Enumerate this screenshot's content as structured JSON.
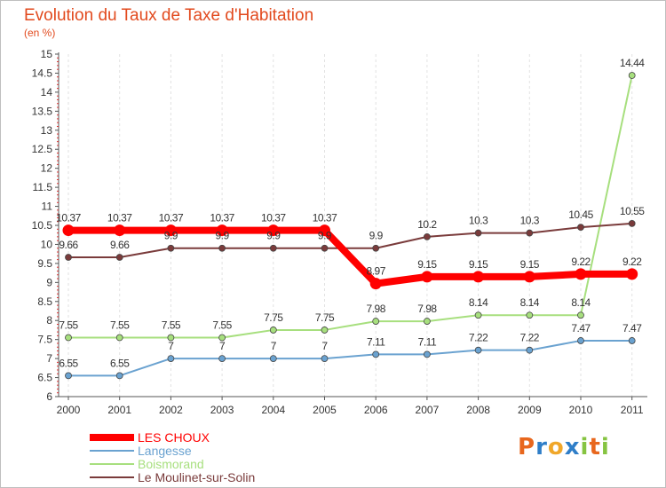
{
  "chart_data": {
    "type": "line",
    "title": "Evolution du Taux de Taxe d'Habitation",
    "subtitle": "(en %)",
    "x": [
      "2000",
      "2001",
      "2002",
      "2003",
      "2004",
      "2005",
      "2006",
      "2007",
      "2008",
      "2009",
      "2010",
      "2011"
    ],
    "ylim": [
      6,
      15
    ],
    "yticks": [
      "6",
      "6.5",
      "7",
      "7.5",
      "8",
      "8.5",
      "9",
      "9.5",
      "10",
      "10.5",
      "11",
      "11.5",
      "12",
      "12.5",
      "13",
      "13.5",
      "14",
      "14.5",
      "15"
    ],
    "grid": "vertical dashed",
    "legend_position": "bottom-left",
    "series": [
      {
        "name": "LES CHOUX",
        "color": "#ff0000",
        "values": [
          10.37,
          10.37,
          10.37,
          10.37,
          10.37,
          10.37,
          8.97,
          9.15,
          9.15,
          9.15,
          9.22,
          9.22
        ],
        "labels": [
          "10.37",
          "10.37",
          "10.37",
          "10.37",
          "10.37",
          "10.37",
          "8.97",
          "9.15",
          "9.15",
          "9.15",
          "9.22",
          "9.22"
        ]
      },
      {
        "name": "Langesse",
        "color": "#6aa2d0",
        "values": [
          6.55,
          6.55,
          7,
          7,
          7,
          7,
          7.11,
          7.11,
          7.22,
          7.22,
          7.47,
          7.47
        ],
        "labels": [
          "6.55",
          "6.55",
          "7",
          "7",
          "7",
          "7",
          "7.11",
          "7.11",
          "7.22",
          "7.22",
          "7.47",
          "7.47"
        ]
      },
      {
        "name": "Boismorand",
        "color": "#a7df7e",
        "values": [
          7.55,
          7.55,
          7.55,
          7.55,
          7.75,
          7.75,
          7.98,
          7.98,
          8.14,
          8.14,
          8.14,
          14.44
        ],
        "labels": [
          "7.55",
          "7.55",
          "7.55",
          "7.55",
          "7.75",
          "7.75",
          "7.98",
          "7.98",
          "8.14",
          "8.14",
          "8.14",
          "14.44"
        ]
      },
      {
        "name": "Le Moulinet-sur-Solin",
        "color": "#7a3b3b",
        "values": [
          9.66,
          9.66,
          9.9,
          9.9,
          9.9,
          9.9,
          9.9,
          10.2,
          10.3,
          10.3,
          10.45,
          10.55
        ],
        "labels": [
          "9.66",
          "9.66",
          "9.9",
          "9.9",
          "9.9",
          "9.9",
          "9.9",
          "10.2",
          "10.3",
          "10.3",
          "10.45",
          "10.55"
        ]
      }
    ]
  },
  "logo": {
    "letters": [
      "P",
      "r",
      "o",
      "x",
      "i",
      "t",
      "i"
    ],
    "colors": [
      "#e8671d",
      "#2f7ec8",
      "#f0a72a",
      "#2f7ec8",
      "#86c441",
      "#e8671d",
      "#86c441"
    ]
  }
}
